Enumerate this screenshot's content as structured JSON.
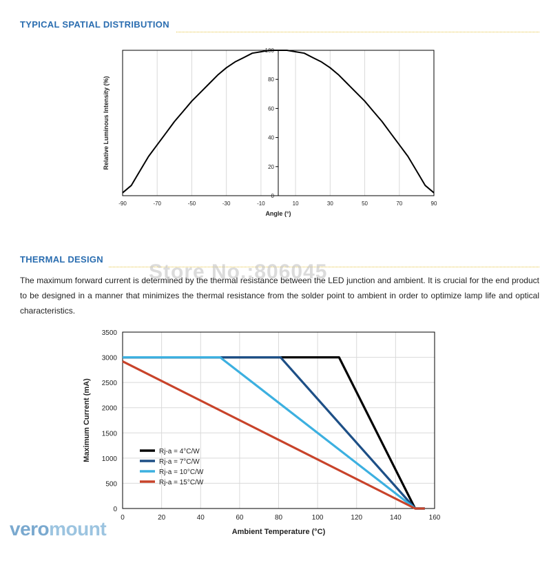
{
  "sections": {
    "spatial_title": "TYPICAL SPATIAL DISTRIBUTION",
    "thermal_title": "THERMAL DESIGN",
    "thermal_text": "The maximum forward current is determined by the thermal resistance between the LED junction and ambient. It is crucial for the end product to be designed in a manner that minimizes the thermal resistance from the solder point to ambient in order to optimize lamp life and optical characteristics."
  },
  "watermark": "Store No.:806045",
  "logo": {
    "part1": "vero",
    "part2": "mount"
  },
  "colors": {
    "heading": "#2a6db0",
    "rule": "#e6c23a",
    "series_4": "#000000",
    "series_7": "#1d4f86",
    "series_10": "#3cb0e0",
    "series_15": "#c8432a"
  },
  "chart_data": [
    {
      "type": "line",
      "title": "",
      "xlabel": "Angle (°)",
      "ylabel": "Relative Luminous Intensity (%)",
      "xlim": [
        -90,
        90
      ],
      "ylim": [
        0,
        100
      ],
      "x_ticks": [
        -90,
        -70,
        -50,
        -30,
        -10,
        10,
        30,
        50,
        70,
        90
      ],
      "y_ticks": [
        0,
        20,
        40,
        60,
        80,
        100
      ],
      "grid": true,
      "series": [
        {
          "x": [
            -90,
            -85,
            -80,
            -75,
            -70,
            -65,
            -60,
            -55,
            -50,
            -45,
            -40,
            -35,
            -30,
            -25,
            -20,
            -15,
            -10,
            -5,
            0,
            5,
            10,
            15,
            20,
            25,
            30,
            35,
            40,
            45,
            50,
            55,
            60,
            65,
            70,
            75,
            80,
            85,
            90
          ],
          "y": [
            2,
            7,
            17,
            27,
            35,
            43,
            51,
            58,
            65,
            71,
            77,
            83,
            88,
            92,
            95,
            98,
            99,
            100,
            100,
            100,
            99,
            98,
            95,
            92,
            88,
            83,
            77,
            71,
            65,
            58,
            51,
            43,
            35,
            27,
            17,
            7,
            2
          ]
        }
      ]
    },
    {
      "type": "line",
      "title": "",
      "xlabel": "Ambient Temperature (°C)",
      "ylabel": "Maximum Current (mA)",
      "xlim": [
        0,
        160
      ],
      "ylim": [
        0,
        3500
      ],
      "x_ticks": [
        0,
        20,
        40,
        60,
        80,
        100,
        120,
        140,
        160
      ],
      "y_ticks": [
        0,
        500,
        1000,
        1500,
        2000,
        2500,
        3000,
        3500
      ],
      "grid": true,
      "legend_position": "bottom-left",
      "series": [
        {
          "name": "Rj-a = 4°C/W",
          "x": [
            0,
            111,
            150,
            155
          ],
          "y": [
            3000,
            3000,
            0,
            0
          ]
        },
        {
          "name": "Rj-a = 7°C/W",
          "x": [
            0,
            81,
            150,
            155
          ],
          "y": [
            3000,
            3000,
            0,
            0
          ]
        },
        {
          "name": "Rj-a = 10°C/W",
          "x": [
            0,
            50,
            150,
            155
          ],
          "y": [
            3000,
            3000,
            0,
            0
          ]
        },
        {
          "name": "Rj-a = 15°C/W",
          "x": [
            0,
            150,
            155
          ],
          "y": [
            2920,
            0,
            0
          ]
        }
      ]
    }
  ]
}
